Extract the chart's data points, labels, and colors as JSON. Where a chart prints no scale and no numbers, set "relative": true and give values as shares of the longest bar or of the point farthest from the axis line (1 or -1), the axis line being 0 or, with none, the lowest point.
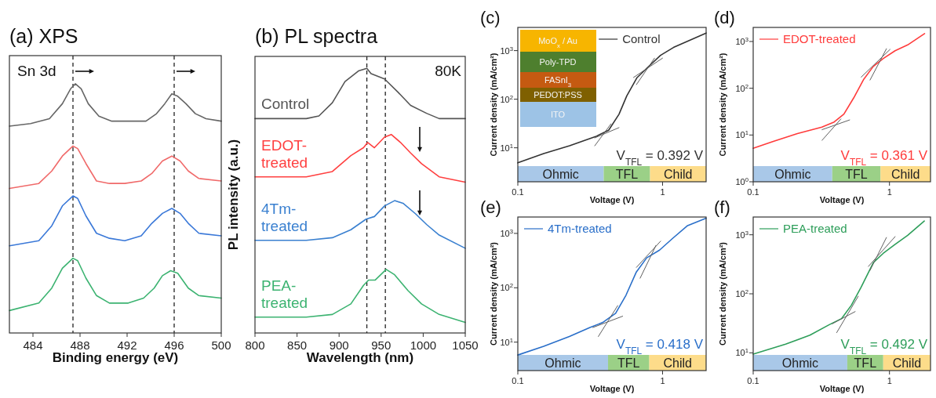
{
  "chart_data": [
    {
      "type": "line",
      "title": "(a) XPS",
      "xlabel": "Binding energy (eV)",
      "relative": true,
      "tick_labels": "x",
      "xlim": [
        482,
        500
      ],
      "xticks": [
        484,
        488,
        492,
        496,
        500
      ],
      "annotations": [
        "Sn 3d"
      ],
      "ref_lines": [
        {
          "axis": "x",
          "value": 487.4,
          "color": "#222222",
          "line_style": "dashed"
        },
        {
          "axis": "x",
          "value": 496,
          "color": "#222222",
          "line_style": "dashed"
        }
      ],
      "series": [
        {
          "color": "#666666",
          "x": [
            482,
            483.8,
            485.4,
            486.5,
            487.2,
            487.6,
            488.1,
            488.7,
            489.6,
            490.7,
            492.3,
            493.6,
            494.5,
            495.2,
            495.8,
            496.3,
            497,
            497.8,
            498.7,
            500
          ],
          "values": [
            0.83,
            0.84,
            0.86,
            0.92,
            0.98,
            1,
            0.98,
            0.92,
            0.87,
            0.85,
            0.85,
            0.85,
            0.88,
            0.92,
            0.96,
            0.95,
            0.92,
            0.88,
            0.86,
            0.85
          ]
        },
        {
          "color": "#f06a6a",
          "x": [
            482,
            484.5,
            485.6,
            486.5,
            487.4,
            487.8,
            488.5,
            489.4,
            490.5,
            491.8,
            493.2,
            494.1,
            495,
            495.8,
            496.5,
            497.2,
            498.1,
            500
          ],
          "values": [
            0.58,
            0.6,
            0.65,
            0.71,
            0.75,
            0.74,
            0.68,
            0.61,
            0.6,
            0.6,
            0.61,
            0.64,
            0.69,
            0.71,
            0.69,
            0.65,
            0.62,
            0.61
          ]
        },
        {
          "color": "#3a78d8",
          "x": [
            482,
            484.5,
            485.6,
            486.5,
            487.4,
            487.8,
            488.5,
            489.4,
            490.5,
            491.8,
            493.2,
            494.1,
            495,
            495.8,
            496.5,
            497.2,
            498.1,
            500
          ],
          "values": [
            0.35,
            0.37,
            0.43,
            0.51,
            0.55,
            0.54,
            0.47,
            0.4,
            0.38,
            0.37,
            0.39,
            0.44,
            0.48,
            0.5,
            0.48,
            0.44,
            0.4,
            0.39
          ]
        },
        {
          "color": "#3cb371",
          "x": [
            482,
            484.5,
            485.6,
            486.5,
            487.4,
            487.8,
            488.5,
            489.4,
            490.5,
            492.1,
            493.4,
            494.3,
            495,
            495.7,
            496.3,
            497.2,
            498.1,
            500
          ],
          "values": [
            0.09,
            0.12,
            0.18,
            0.26,
            0.3,
            0.29,
            0.22,
            0.15,
            0.12,
            0.12,
            0.14,
            0.18,
            0.23,
            0.25,
            0.24,
            0.18,
            0.15,
            0.14
          ]
        }
      ]
    },
    {
      "type": "line",
      "title": "(b) PL spectra",
      "xlabel": "Wavelength (nm)",
      "ylabel": "PL intensity (a.u.)",
      "relative": true,
      "tick_labels": "x",
      "xlim": [
        800,
        1050
      ],
      "xticks": [
        800,
        850,
        900,
        950,
        1000,
        1050
      ],
      "annotations": [
        "80K"
      ],
      "ref_lines": [
        {
          "axis": "x",
          "value": 933,
          "color": "#222222",
          "line_style": "dashed"
        },
        {
          "axis": "x",
          "value": 955,
          "color": "#222222",
          "line_style": "dashed"
        }
      ],
      "series": [
        {
          "name": "Control",
          "color": "#555555",
          "x": [
            800,
            861,
            876,
            892,
            907,
            923,
            933,
            938,
            954,
            970,
            985,
            1004,
            1019,
            1050
          ],
          "values": [
            0.81,
            0.81,
            0.82,
            0.87,
            0.95,
            0.99,
            1,
            0.98,
            0.96,
            0.91,
            0.86,
            0.83,
            0.81,
            0.81
          ]
        },
        {
          "name": "EDOT-treated",
          "color": "#ff4040",
          "x": [
            800,
            861,
            892,
            914,
            929,
            934,
            942,
            954,
            962,
            973,
            985,
            998,
            1019,
            1050
          ],
          "values": [
            0.59,
            0.59,
            0.61,
            0.67,
            0.7,
            0.72,
            0.7,
            0.74,
            0.75,
            0.72,
            0.68,
            0.64,
            0.59,
            0.57
          ]
        },
        {
          "name": "4Tm-treated",
          "color": "#3a80d0",
          "x": [
            800,
            861,
            892,
            914,
            932,
            942,
            954,
            966,
            976,
            991,
            1004,
            1019,
            1050
          ],
          "values": [
            0.35,
            0.35,
            0.36,
            0.39,
            0.43,
            0.44,
            0.48,
            0.5,
            0.49,
            0.45,
            0.41,
            0.37,
            0.32
          ]
        },
        {
          "name": "PEA-treated",
          "color": "#3cb371",
          "x": [
            800,
            861,
            892,
            914,
            929,
            935,
            943,
            956,
            966,
            982,
            998,
            1019,
            1050
          ],
          "values": [
            0.06,
            0.06,
            0.07,
            0.11,
            0.18,
            0.2,
            0.2,
            0.24,
            0.22,
            0.16,
            0.11,
            0.07,
            0.04
          ]
        }
      ]
    },
    {
      "type": "line",
      "title": "(c)",
      "xlabel": "Voltage (V)",
      "ylabel": "Current density (mA/cm²)",
      "log": "xy",
      "xlim": [
        0.1,
        2
      ],
      "xticks": [
        0.1,
        1
      ],
      "ylim": [
        2,
        3000
      ],
      "yticks": [
        {
          "value": 10,
          "label": "10$^{1}$"
        },
        {
          "value": 100,
          "label": "10$^{2}$"
        },
        {
          "value": 1000,
          "label": "10$^{3}$"
        }
      ],
      "legend": "top",
      "annotations": [
        "V$_{TFL}$ = 0.392 V",
        "MoO$_{x}$ / Au",
        "Poly-TPD",
        "FASnI$_{3}$",
        "PEDOT:PSS",
        "ITO"
      ],
      "bands": [
        {
          "axis": "x",
          "from": 0.1,
          "to": 0.392,
          "label": "Ohmic",
          "color": "#a9c8e8"
        },
        {
          "axis": "x",
          "from": 0.392,
          "to": 0.82,
          "label": "TFL",
          "color": "#9bd087"
        },
        {
          "axis": "x",
          "from": 0.82,
          "to": 2,
          "label": "Child",
          "color": "#fddc8a"
        }
      ],
      "series": [
        {
          "name": "Control",
          "color": "#333333",
          "x": [
            0.1,
            0.151,
            0.228,
            0.345,
            0.424,
            0.5,
            0.566,
            0.667,
            0.787,
            0.968,
            1.19,
            2
          ],
          "values": [
            4.9,
            7.6,
            11,
            17,
            23,
            49,
            117,
            279,
            447,
            800,
            1160,
            2300
          ]
        },
        {
          "color": "#606060",
          "x": [
            0.34,
            0.5
          ],
          "values": [
            16,
            26
          ]
        },
        {
          "color": "#606060",
          "x": [
            0.34,
            0.44
          ],
          "values": [
            11,
            31
          ]
        },
        {
          "color": "#606060",
          "x": [
            0.63,
            1.0
          ],
          "values": [
            280,
            700
          ]
        },
        {
          "color": "#606060",
          "x": [
            0.66,
            0.88
          ],
          "values": [
            200,
            700
          ]
        }
      ]
    },
    {
      "type": "line",
      "title": "(d)",
      "xlabel": "Voltage (V)",
      "ylabel": "Current density (mA/cm²)",
      "log": "xy",
      "xlim": [
        0.1,
        2
      ],
      "xticks": [
        0.1,
        1
      ],
      "ylim": [
        1,
        2000
      ],
      "yticks": [
        {
          "value": 1,
          "label": "10$^{0}$"
        },
        {
          "value": 10,
          "label": "10$^{1}$"
        },
        {
          "value": 100,
          "label": "10$^{2}$"
        },
        {
          "value": 1000,
          "label": "10$^{3}$"
        }
      ],
      "legend": "top left",
      "annotations": [
        "V$_{TFL}$ = 0.361 V"
      ],
      "bands": [
        {
          "axis": "x",
          "from": 0.1,
          "to": 0.38,
          "label": "Ohmic",
          "color": "#a9c8e8"
        },
        {
          "axis": "x",
          "from": 0.38,
          "to": 0.86,
          "label": "TFL",
          "color": "#9bd087"
        },
        {
          "axis": "x",
          "from": 0.86,
          "to": 2,
          "label": "Child",
          "color": "#fddc8a"
        }
      ],
      "series": [
        {
          "name": "EDOT-treated",
          "color": "#ff3b3b",
          "x": [
            0.1,
            0.139,
            0.211,
            0.319,
            0.393,
            0.463,
            0.546,
            0.644,
            0.76,
            0.897,
            1.1,
            1.36,
            1.81
          ],
          "values": [
            5.2,
            7.2,
            10.7,
            14.8,
            19,
            28,
            62,
            152,
            292,
            430,
            635,
            845,
            1475
          ]
        },
        {
          "color": "#606060",
          "x": [
            0.32,
            0.51
          ],
          "values": [
            13,
            21
          ]
        },
        {
          "color": "#606060",
          "x": [
            0.32,
            0.44
          ],
          "values": [
            7.7,
            22
          ]
        },
        {
          "color": "#606060",
          "x": [
            0.62,
            1.01
          ],
          "values": [
            173,
            678
          ]
        },
        {
          "color": "#606060",
          "x": [
            0.72,
            0.95
          ],
          "values": [
            150,
            700
          ]
        }
      ]
    },
    {
      "type": "line",
      "title": "(e)",
      "xlabel": "Voltage (V)",
      "ylabel": "Current density (mA/cm²)",
      "log": "xy",
      "xlim": [
        0.1,
        2
      ],
      "xticks": [
        0.1,
        1
      ],
      "ylim": [
        3,
        2000
      ],
      "yticks": [
        {
          "value": 10,
          "label": "10$^{1}$"
        },
        {
          "value": 100,
          "label": "10$^{2}$"
        },
        {
          "value": 1000,
          "label": "10$^{3}$"
        }
      ],
      "legend": "top left",
      "annotations": [
        "V$_{TFL}$ = 0.418 V"
      ],
      "bands": [
        {
          "axis": "x",
          "from": 0.1,
          "to": 0.42,
          "label": "Ohmic",
          "color": "#a9c8e8"
        },
        {
          "axis": "x",
          "from": 0.42,
          "to": 0.81,
          "label": "TFL",
          "color": "#9bd087"
        },
        {
          "axis": "x",
          "from": 0.81,
          "to": 2,
          "label": "Child",
          "color": "#fddc8a"
        }
      ],
      "series": [
        {
          "name": "4Tm-treated",
          "color": "#2a6fc9",
          "x": [
            0.1,
            0.151,
            0.227,
            0.315,
            0.386,
            0.474,
            0.559,
            0.659,
            0.777,
            0.953,
            1.17,
            1.49,
            2
          ],
          "values": [
            5.8,
            8.4,
            12.7,
            18.6,
            23,
            34,
            73,
            195,
            355,
            492,
            803,
            1390,
            1900
          ]
        },
        {
          "color": "#606060",
          "x": [
            0.33,
            0.53
          ],
          "values": [
            18.6,
            30
          ]
        },
        {
          "color": "#606060",
          "x": [
            0.36,
            0.49
          ],
          "values": [
            12.7,
            47
          ]
        },
        {
          "color": "#606060",
          "x": [
            0.66,
            0.97
          ],
          "values": [
            237,
            720
          ]
        },
        {
          "color": "#606060",
          "x": [
            0.7,
            0.9
          ],
          "values": [
            150,
            600
          ]
        }
      ]
    },
    {
      "type": "line",
      "title": "(f)",
      "xlabel": "Voltage (V)",
      "ylabel": "Current density (mA/cm²)",
      "log": "xy",
      "xlim": [
        0.1,
        2
      ],
      "xticks": [
        0.1,
        1
      ],
      "ylim": [
        5,
        2000
      ],
      "yticks": [
        {
          "value": 10,
          "label": "10$^{1}$"
        },
        {
          "value": 100,
          "label": "10$^{2}$"
        },
        {
          "value": 1000,
          "label": "10$^{3}$"
        }
      ],
      "legend": "top left",
      "annotations": [
        "V$_{TFL}$ = 0.492 V"
      ],
      "bands": [
        {
          "axis": "x",
          "from": 0.1,
          "to": 0.49,
          "label": "Ohmic",
          "color": "#a9c8e8"
        },
        {
          "axis": "x",
          "from": 0.49,
          "to": 0.9,
          "label": "TFL",
          "color": "#9bd087"
        },
        {
          "axis": "x",
          "from": 0.9,
          "to": 2,
          "label": "Child",
          "color": "#fddc8a"
        }
      ],
      "series": [
        {
          "name": "PEA-treated",
          "color": "#2e9e5a",
          "x": [
            0.1,
            0.173,
            0.261,
            0.362,
            0.445,
            0.525,
            0.619,
            0.762,
            0.898,
            1.1,
            1.36,
            1.8
          ],
          "values": [
            9.5,
            14,
            19.9,
            30,
            38,
            64,
            129,
            339,
            483,
            687,
            980,
            1710
          ]
        },
        {
          "color": "#606060",
          "x": [
            0.38,
            0.56
          ],
          "values": [
            31,
            50
          ]
        },
        {
          "color": "#606060",
          "x": [
            0.41,
            0.59
          ],
          "values": [
            22,
            91
          ]
        },
        {
          "color": "#606060",
          "x": [
            0.7,
            1.1
          ],
          "values": [
            291,
            931
          ]
        },
        {
          "color": "#606060",
          "x": [
            0.72,
            0.95
          ],
          "values": [
            250,
            900
          ]
        }
      ]
    }
  ]
}
